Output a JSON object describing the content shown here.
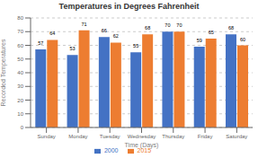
{
  "chart_data": {
    "type": "bar",
    "title": "Temperatures in Degrees Fahrenheit",
    "xlabel": "Time (Days)",
    "ylabel": "Recorded Temperatures",
    "categories": [
      "Sunday",
      "Monday",
      "Tuesday",
      "Wednesday",
      "Thursday",
      "Friday",
      "Saturday"
    ],
    "series": [
      {
        "name": "2000",
        "color": "#4472C4",
        "values": [
          57,
          53,
          66,
          55,
          70,
          59,
          68
        ]
      },
      {
        "name": "2015",
        "color": "#ED7D31",
        "values": [
          64,
          71,
          62,
          68,
          70,
          65,
          60
        ]
      }
    ],
    "ylim": [
      0,
      80
    ],
    "yticks": [
      0,
      10,
      20,
      30,
      40,
      50,
      60,
      70,
      80
    ],
    "grid": true,
    "data_labels": true,
    "legend": "bottom"
  }
}
